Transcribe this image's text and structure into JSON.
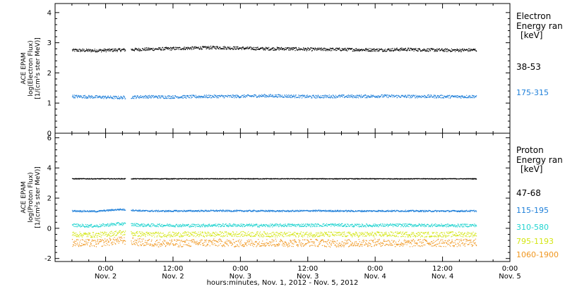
{
  "x_axis": {
    "tick_times": [
      "0:00",
      "12:00",
      "0:00",
      "12:00",
      "0:00",
      "12:00",
      "0:00"
    ],
    "tick_dates": [
      "Nov. 2",
      "Nov. 2",
      "Nov. 3",
      "Nov. 3",
      "Nov. 4",
      "Nov. 4",
      "Nov. 5"
    ],
    "label": "hours:minutes, Nov.  1, 2012 - Nov.  5, 2012"
  },
  "colors": {
    "axis": "#000000",
    "black": "#000000",
    "blue": "#1e7fd9",
    "cyan": "#22d4d0",
    "yellow": "#d4e614",
    "orange": "#f0961e"
  },
  "chart_data": [
    {
      "type": "scatter",
      "ylabel": [
        "ACE EPAM",
        "log(Electron Flux)",
        "[1/(cm²s ster MeV)]"
      ],
      "legend_title": [
        "Electron",
        "Energy ran",
        "[keV]"
      ],
      "ylim": [
        0,
        4.3
      ],
      "yticks": [
        "0",
        "1",
        "2",
        "3",
        "4"
      ],
      "x_range_hours": [
        -9,
        72
      ],
      "data_gap_hours": [
        [
          3.5,
          4.5
        ]
      ],
      "series": [
        {
          "name": "38-53",
          "color": "black",
          "values": [
            2.75,
            2.74,
            2.76,
            2.78,
            2.8,
            2.82,
            2.84,
            2.82,
            2.8,
            2.8,
            2.78,
            2.78,
            2.77,
            2.76,
            2.78,
            2.76,
            2.75,
            2.76
          ],
          "noise": 0.05
        },
        {
          "name": "175-315",
          "color": "blue",
          "values": [
            1.22,
            1.2,
            1.18,
            1.21,
            1.2,
            1.21,
            1.22,
            1.22,
            1.24,
            1.23,
            1.21,
            1.22,
            1.22,
            1.23,
            1.22,
            1.22,
            1.21,
            1.22
          ],
          "noise": 0.05
        }
      ]
    },
    {
      "type": "scatter",
      "ylabel": [
        "ACE EPAM",
        "log(Proton Flux)",
        "[1/(cm²s ster MeV)]"
      ],
      "legend_title": [
        "Proton",
        "Energy ran",
        "[keV]"
      ],
      "ylim": [
        -2.2,
        6.3
      ],
      "yticks": [
        "-2",
        "0",
        "2",
        "4",
        "6"
      ],
      "x_range_hours": [
        -9,
        72
      ],
      "data_gap_hours": [
        [
          3.5,
          4.5
        ]
      ],
      "series": [
        {
          "name": "47-68",
          "color": "black",
          "values": [
            3.28,
            3.28,
            3.28,
            3.28,
            3.28,
            3.28,
            3.28,
            3.28,
            3.28,
            3.28,
            3.28,
            3.28,
            3.28,
            3.28,
            3.28,
            3.28,
            3.28,
            3.28
          ],
          "noise": 0.02
        },
        {
          "name": "115-195",
          "color": "blue",
          "values": [
            1.15,
            1.12,
            1.25,
            1.15,
            1.14,
            1.15,
            1.16,
            1.15,
            1.15,
            1.14,
            1.16,
            1.15,
            1.14,
            1.15,
            1.15,
            1.14,
            1.14,
            1.15
          ],
          "noise": 0.05
        },
        {
          "name": "310-580",
          "color": "cyan",
          "values": [
            0.2,
            0.15,
            0.3,
            0.2,
            0.2,
            0.18,
            0.2,
            0.2,
            0.18,
            0.2,
            0.2,
            0.22,
            0.18,
            0.2,
            0.2,
            0.2,
            0.18,
            0.2
          ],
          "noise": 0.1
        },
        {
          "name": "795-1193",
          "color": "yellow",
          "values": [
            -0.4,
            -0.45,
            -0.3,
            -0.4,
            -0.42,
            -0.4,
            -0.4,
            -0.38,
            -0.4,
            -0.42,
            -0.4,
            -0.4,
            -0.42,
            -0.4,
            -0.4,
            -0.42,
            -0.4,
            -0.4
          ],
          "noise": 0.17
        },
        {
          "name": "1060-1900",
          "color": "orange",
          "values": [
            -0.95,
            -1.0,
            -0.8,
            -0.95,
            -1.0,
            -0.98,
            -0.95,
            -1.0,
            -0.95,
            -0.98,
            -0.95,
            -1.0,
            -0.98,
            -0.95,
            -1.0,
            -0.95,
            -0.98,
            -0.95
          ],
          "noise": 0.25
        }
      ]
    }
  ]
}
